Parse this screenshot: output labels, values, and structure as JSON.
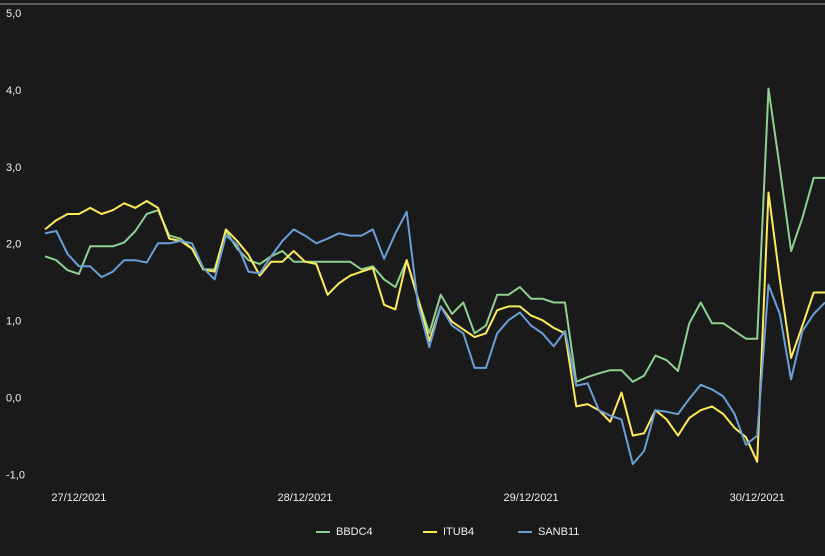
{
  "chart_data": {
    "type": "line",
    "categories": [
      null,
      null,
      null,
      "27/12/2021",
      null,
      null,
      null,
      null,
      null,
      null,
      null,
      null,
      null,
      null,
      null,
      null,
      null,
      null,
      null,
      null,
      null,
      null,
      null,
      "28/12/2021",
      null,
      null,
      null,
      null,
      null,
      null,
      null,
      null,
      null,
      null,
      null,
      null,
      null,
      null,
      null,
      null,
      null,
      null,
      null,
      "29/12/2021",
      null,
      null,
      null,
      null,
      null,
      null,
      null,
      null,
      null,
      null,
      null,
      null,
      null,
      null,
      null,
      null,
      null,
      null,
      null,
      "30/12/2021",
      null,
      null,
      null,
      null,
      null,
      null
    ],
    "series": [
      {
        "name": "BBDC4",
        "color": "#8fd18f",
        "values": [
          1.85,
          1.8,
          1.67,
          1.62,
          1.98,
          1.98,
          1.98,
          2.03,
          2.18,
          2.4,
          2.45,
          2.12,
          2.08,
          1.95,
          1.68,
          1.68,
          2.18,
          1.95,
          1.8,
          1.75,
          1.85,
          1.92,
          1.78,
          1.78,
          1.78,
          1.78,
          1.78,
          1.78,
          1.68,
          1.72,
          1.55,
          1.45,
          1.8,
          1.3,
          0.85,
          1.35,
          1.1,
          1.25,
          0.85,
          0.95,
          1.35,
          1.35,
          1.45,
          1.3,
          1.3,
          1.25,
          1.25,
          0.22,
          0.28,
          0.33,
          0.37,
          0.37,
          0.22,
          0.3,
          0.56,
          0.5,
          0.36,
          0.98,
          1.25,
          0.98,
          0.98,
          0.88,
          0.78,
          0.78,
          4.03,
          3.0,
          1.92,
          2.35,
          2.87,
          2.87
        ]
      },
      {
        "name": "ITUB4",
        "color": "#ffeb5a",
        "values": [
          2.2,
          2.32,
          2.4,
          2.4,
          2.48,
          2.4,
          2.45,
          2.54,
          2.48,
          2.57,
          2.48,
          2.08,
          2.05,
          1.95,
          1.68,
          1.65,
          2.2,
          2.05,
          1.87,
          1.6,
          1.78,
          1.78,
          1.92,
          1.78,
          1.75,
          1.35,
          1.5,
          1.6,
          1.65,
          1.7,
          1.22,
          1.16,
          1.8,
          1.3,
          0.75,
          1.2,
          1.0,
          0.9,
          0.8,
          0.85,
          1.15,
          1.2,
          1.2,
          1.08,
          1.02,
          0.92,
          0.85,
          -0.1,
          -0.07,
          -0.15,
          -0.3,
          0.08,
          -0.48,
          -0.45,
          -0.15,
          -0.27,
          -0.48,
          -0.25,
          -0.15,
          -0.1,
          -0.2,
          -0.38,
          -0.5,
          -0.82,
          2.68,
          1.55,
          0.53,
          0.95,
          1.38,
          1.38
        ]
      },
      {
        "name": "SANB11",
        "color": "#6a9fd8",
        "values": [
          2.15,
          2.18,
          1.88,
          1.72,
          1.72,
          1.58,
          1.65,
          1.8,
          1.8,
          1.77,
          2.02,
          2.02,
          2.05,
          2.02,
          1.7,
          1.55,
          2.12,
          2.0,
          1.65,
          1.63,
          1.85,
          2.05,
          2.2,
          2.12,
          2.02,
          2.08,
          2.15,
          2.12,
          2.12,
          2.2,
          1.82,
          2.15,
          2.43,
          1.22,
          0.67,
          1.2,
          0.95,
          0.85,
          0.4,
          0.4,
          0.85,
          1.02,
          1.12,
          0.95,
          0.85,
          0.68,
          0.88,
          0.17,
          0.2,
          -0.15,
          -0.22,
          -0.27,
          -0.85,
          -0.68,
          -0.15,
          -0.17,
          -0.2,
          0.0,
          0.18,
          0.12,
          0.03,
          -0.2,
          -0.6,
          -0.48,
          1.48,
          1.1,
          0.25,
          0.88,
          1.1,
          1.25
        ]
      }
    ],
    "ylim": [
      -1.2,
      5.13
    ],
    "yticks": [
      {
        "value": 5,
        "label": "5,0"
      },
      {
        "value": 4,
        "label": "4,0"
      },
      {
        "value": 3,
        "label": "3,0"
      },
      {
        "value": 2,
        "label": "2,0"
      },
      {
        "value": 1,
        "label": "1,0"
      },
      {
        "value": 0,
        "label": "0,0"
      },
      {
        "value": -1,
        "label": "-1,0"
      }
    ],
    "grid": false,
    "legend": "bottom"
  }
}
